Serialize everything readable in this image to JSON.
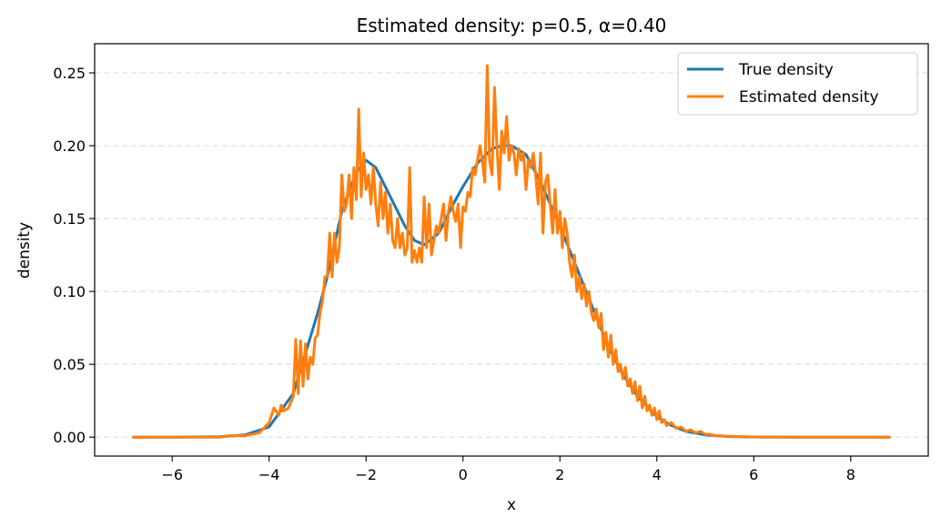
{
  "chart_data": {
    "type": "line",
    "title": "Estimated density: p=0.5, α=0.40",
    "xlabel": "x",
    "ylabel": "density",
    "xlim": [
      -7.6,
      9.6
    ],
    "ylim": [
      -0.013,
      0.27
    ],
    "xticks": [
      -6,
      -4,
      -2,
      0,
      2,
      4,
      6,
      8
    ],
    "xtick_labels": [
      "−6",
      "−4",
      "−2",
      "0",
      "2",
      "4",
      "6",
      "8"
    ],
    "yticks": [
      0.0,
      0.05,
      0.1,
      0.15,
      0.2,
      0.25
    ],
    "ytick_labels": [
      "0.00",
      "0.05",
      "0.10",
      "0.15",
      "0.20",
      "0.25"
    ],
    "grid": "y, dashed",
    "legend_position": "top-right",
    "series": [
      {
        "name": "True density",
        "color": "#1f77b4",
        "style": "smooth",
        "x": [
          -6.8,
          -6.0,
          -5.0,
          -4.5,
          -4.0,
          -3.5,
          -3.0,
          -2.8,
          -2.5,
          -2.2,
          -2.0,
          -1.8,
          -1.5,
          -1.2,
          -1.0,
          -0.8,
          -0.5,
          -0.2,
          0.0,
          0.3,
          0.6,
          0.8,
          1.0,
          1.3,
          1.6,
          2.0,
          2.3,
          2.6,
          3.0,
          3.3,
          3.6,
          4.0,
          4.3,
          4.6,
          5.0,
          5.5,
          6.0,
          7.0,
          8.8
        ],
        "y": [
          0.0,
          0.0,
          0.0003,
          0.0015,
          0.007,
          0.03,
          0.085,
          0.11,
          0.155,
          0.182,
          0.19,
          0.185,
          0.165,
          0.145,
          0.135,
          0.132,
          0.14,
          0.16,
          0.172,
          0.188,
          0.198,
          0.2,
          0.2,
          0.194,
          0.175,
          0.145,
          0.12,
          0.095,
          0.062,
          0.043,
          0.028,
          0.014,
          0.008,
          0.004,
          0.0015,
          0.0004,
          0.0001,
          0.0,
          0.0
        ]
      },
      {
        "name": "Estimated density",
        "color": "#ff7f0e",
        "style": "noisy",
        "x": [
          -6.8,
          -5.0,
          -4.8,
          -4.5,
          -4.2,
          -4.0,
          -3.9,
          -3.8,
          -3.75,
          -3.7,
          -3.6,
          -3.5,
          -3.45,
          -3.4,
          -3.35,
          -3.3,
          -3.25,
          -3.2,
          -3.15,
          -3.1,
          -3.05,
          -3.0,
          -2.95,
          -2.9,
          -2.85,
          -2.8,
          -2.75,
          -2.7,
          -2.65,
          -2.6,
          -2.55,
          -2.5,
          -2.45,
          -2.4,
          -2.35,
          -2.3,
          -2.25,
          -2.2,
          -2.15,
          -2.1,
          -2.05,
          -2.0,
          -1.95,
          -1.9,
          -1.85,
          -1.8,
          -1.75,
          -1.7,
          -1.65,
          -1.6,
          -1.55,
          -1.5,
          -1.45,
          -1.4,
          -1.35,
          -1.3,
          -1.25,
          -1.2,
          -1.15,
          -1.1,
          -1.05,
          -1.0,
          -0.95,
          -0.9,
          -0.85,
          -0.8,
          -0.75,
          -0.7,
          -0.65,
          -0.6,
          -0.55,
          -0.5,
          -0.45,
          -0.4,
          -0.35,
          -0.3,
          -0.25,
          -0.2,
          -0.15,
          -0.1,
          -0.05,
          0.0,
          0.05,
          0.1,
          0.15,
          0.2,
          0.25,
          0.3,
          0.35,
          0.4,
          0.45,
          0.5,
          0.55,
          0.6,
          0.65,
          0.7,
          0.75,
          0.8,
          0.85,
          0.9,
          0.95,
          1.0,
          1.05,
          1.1,
          1.15,
          1.2,
          1.25,
          1.3,
          1.35,
          1.4,
          1.45,
          1.5,
          1.55,
          1.6,
          1.65,
          1.7,
          1.75,
          1.8,
          1.85,
          1.9,
          1.95,
          2.0,
          2.05,
          2.1,
          2.15,
          2.2,
          2.25,
          2.3,
          2.35,
          2.4,
          2.45,
          2.5,
          2.55,
          2.6,
          2.65,
          2.7,
          2.75,
          2.8,
          2.85,
          2.9,
          2.95,
          3.0,
          3.05,
          3.1,
          3.15,
          3.2,
          3.25,
          3.3,
          3.35,
          3.4,
          3.45,
          3.5,
          3.55,
          3.6,
          3.65,
          3.7,
          3.75,
          3.8,
          3.85,
          3.9,
          3.95,
          4.0,
          4.05,
          4.1,
          4.15,
          4.2,
          4.3,
          4.4,
          4.5,
          4.6,
          4.7,
          4.8,
          4.9,
          5.0,
          5.1,
          5.2,
          5.3,
          5.5,
          5.8,
          6.2,
          7.0,
          8.8
        ],
        "y": [
          0.0,
          0.0,
          0.001,
          0.001,
          0.003,
          0.01,
          0.02,
          0.015,
          0.022,
          0.018,
          0.02,
          0.028,
          0.067,
          0.03,
          0.066,
          0.035,
          0.064,
          0.04,
          0.055,
          0.05,
          0.068,
          0.07,
          0.085,
          0.093,
          0.11,
          0.11,
          0.14,
          0.11,
          0.14,
          0.12,
          0.13,
          0.18,
          0.155,
          0.16,
          0.18,
          0.15,
          0.185,
          0.163,
          0.225,
          0.165,
          0.195,
          0.17,
          0.18,
          0.16,
          0.185,
          0.16,
          0.145,
          0.175,
          0.15,
          0.168,
          0.14,
          0.16,
          0.135,
          0.13,
          0.15,
          0.13,
          0.14,
          0.125,
          0.13,
          0.185,
          0.12,
          0.128,
          0.12,
          0.13,
          0.12,
          0.165,
          0.13,
          0.16,
          0.125,
          0.135,
          0.145,
          0.14,
          0.15,
          0.16,
          0.135,
          0.155,
          0.165,
          0.155,
          0.148,
          0.16,
          0.13,
          0.158,
          0.155,
          0.168,
          0.165,
          0.185,
          0.18,
          0.19,
          0.2,
          0.19,
          0.175,
          0.255,
          0.19,
          0.18,
          0.24,
          0.2,
          0.17,
          0.21,
          0.195,
          0.22,
          0.19,
          0.2,
          0.195,
          0.18,
          0.198,
          0.19,
          0.195,
          0.17,
          0.19,
          0.185,
          0.195,
          0.18,
          0.16,
          0.195,
          0.14,
          0.175,
          0.18,
          0.16,
          0.14,
          0.17,
          0.14,
          0.155,
          0.13,
          0.15,
          0.14,
          0.12,
          0.11,
          0.125,
          0.1,
          0.11,
          0.095,
          0.105,
          0.09,
          0.1,
          0.085,
          0.08,
          0.088,
          0.075,
          0.085,
          0.06,
          0.072,
          0.055,
          0.07,
          0.05,
          0.06,
          0.045,
          0.05,
          0.04,
          0.048,
          0.035,
          0.04,
          0.03,
          0.038,
          0.025,
          0.035,
          0.02,
          0.028,
          0.018,
          0.022,
          0.015,
          0.02,
          0.012,
          0.018,
          0.01,
          0.012,
          0.008,
          0.01,
          0.006,
          0.007,
          0.004,
          0.005,
          0.003,
          0.004,
          0.002,
          0.002,
          0.001,
          0.001,
          0.0005,
          0.0003,
          0.0,
          0.0,
          0.0
        ]
      }
    ]
  }
}
